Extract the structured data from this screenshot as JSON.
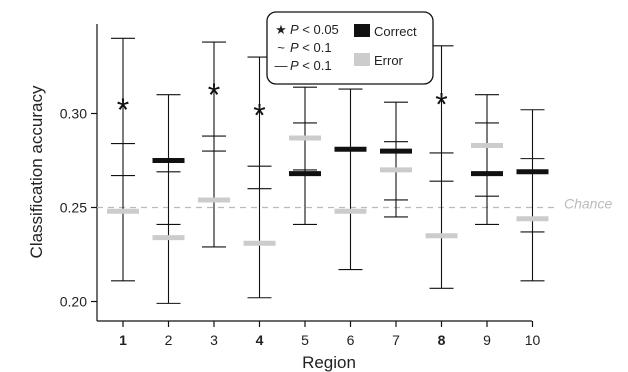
{
  "chart_data": {
    "type": "errorbar",
    "xlabel": "Region",
    "ylabel": "Classification accuracy",
    "ylim": [
      0.195,
      0.35
    ],
    "yticks": [
      0.2,
      0.25,
      0.3
    ],
    "ytick_labels": [
      "0.20",
      "0.25",
      "0.30"
    ],
    "categories": [
      "1",
      "2",
      "3",
      "4",
      "5",
      "6",
      "7",
      "8",
      "9",
      "10"
    ],
    "bold_categories": [
      "1",
      "4",
      "8"
    ],
    "series": [
      {
        "name": "Correct",
        "color": "#111111",
        "means": [
          null,
          0.275,
          null,
          null,
          0.268,
          0.281,
          0.28,
          null,
          0.268,
          0.269
        ],
        "ci_low": [
          0.211,
          0.199,
          0.229,
          0.202,
          0.241,
          0.217,
          0.245,
          0.207,
          0.241,
          0.211
        ],
        "ci_high": [
          0.34,
          0.31,
          0.338,
          0.33,
          0.314,
          0.313,
          0.306,
          0.336,
          0.31,
          0.302
        ]
      },
      {
        "name": "Error",
        "color": "#cccccc",
        "means": [
          0.248,
          0.234,
          0.254,
          0.231,
          0.287,
          0.248,
          0.27,
          0.235,
          0.283,
          0.244
        ],
        "ci_low": [
          0.267,
          0.241,
          0.28,
          0.26,
          0.27,
          null,
          0.254,
          0.264,
          0.256,
          0.237
        ],
        "ci_high": [
          0.284,
          0.269,
          0.288,
          0.272,
          0.295,
          null,
          0.285,
          0.279,
          0.295,
          0.276
        ]
      }
    ],
    "significance_markers": [
      {
        "category": "1",
        "marker": "*",
        "y": 0.304
      },
      {
        "category": "3",
        "marker": "*",
        "y": 0.312
      },
      {
        "category": "4",
        "marker": "*",
        "y": 0.301
      },
      {
        "category": "8",
        "marker": "*",
        "y": 0.307
      }
    ],
    "chance_level": 0.25,
    "chance_label": "Chance",
    "legend": {
      "placement": "top-center",
      "items": [
        {
          "symbol": "★",
          "label": "P < 0.05",
          "italic_p": true
        },
        {
          "symbol": "~",
          "label": "P < 0.1",
          "italic_p": true
        },
        {
          "symbol": "—",
          "label": "P < 0.1",
          "italic_p": true
        }
      ],
      "series_items": [
        {
          "label": "Correct",
          "color": "#111111"
        },
        {
          "label": "Error",
          "color": "#cccccc"
        }
      ]
    }
  }
}
